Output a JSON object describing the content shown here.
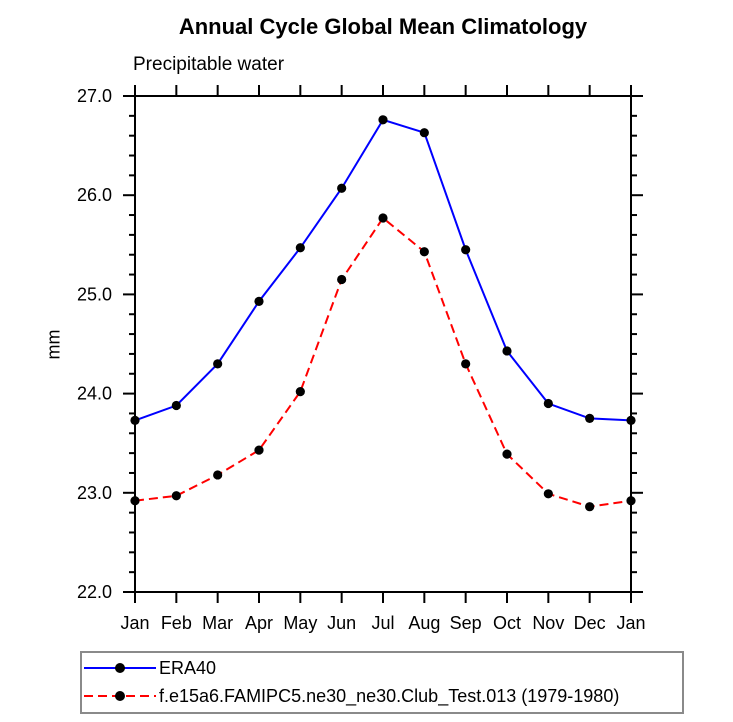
{
  "page": {
    "background": "#ffffff"
  },
  "chart_data": {
    "type": "line",
    "title": "Annual Cycle Global Mean Climatology",
    "subtitle": "Precipitable water",
    "ylabel": "mm",
    "xlabel": "",
    "categories": [
      "Jan",
      "Feb",
      "Mar",
      "Apr",
      "May",
      "Jun",
      "Jul",
      "Aug",
      "Sep",
      "Oct",
      "Nov",
      "Dec",
      "Jan"
    ],
    "series": [
      {
        "name": "ERA40",
        "color": "#0000ff",
        "line_style": "solid",
        "marker": "filled-circle",
        "marker_color": "#000000",
        "values": [
          23.73,
          23.88,
          24.3,
          24.93,
          25.47,
          26.07,
          26.76,
          26.63,
          25.45,
          24.43,
          23.9,
          23.75,
          23.73
        ]
      },
      {
        "name": "f.e15a6.FAMIPC5.ne30_ne30.Club_Test.013 (1979-1980)",
        "color": "#ff0000",
        "line_style": "dashed",
        "marker": "filled-circle",
        "marker_color": "#000000",
        "values": [
          22.92,
          22.97,
          23.18,
          23.43,
          24.02,
          25.15,
          25.77,
          25.43,
          24.3,
          23.39,
          22.99,
          22.86,
          22.92
        ]
      }
    ],
    "ylim": [
      22.0,
      27.0
    ],
    "y_major_step": 1.0,
    "y_minor_step": 0.2,
    "y_tick_format": "one-decimal",
    "grid": false,
    "axis_color": "#000000",
    "legend_position": "bottom-left-box"
  }
}
